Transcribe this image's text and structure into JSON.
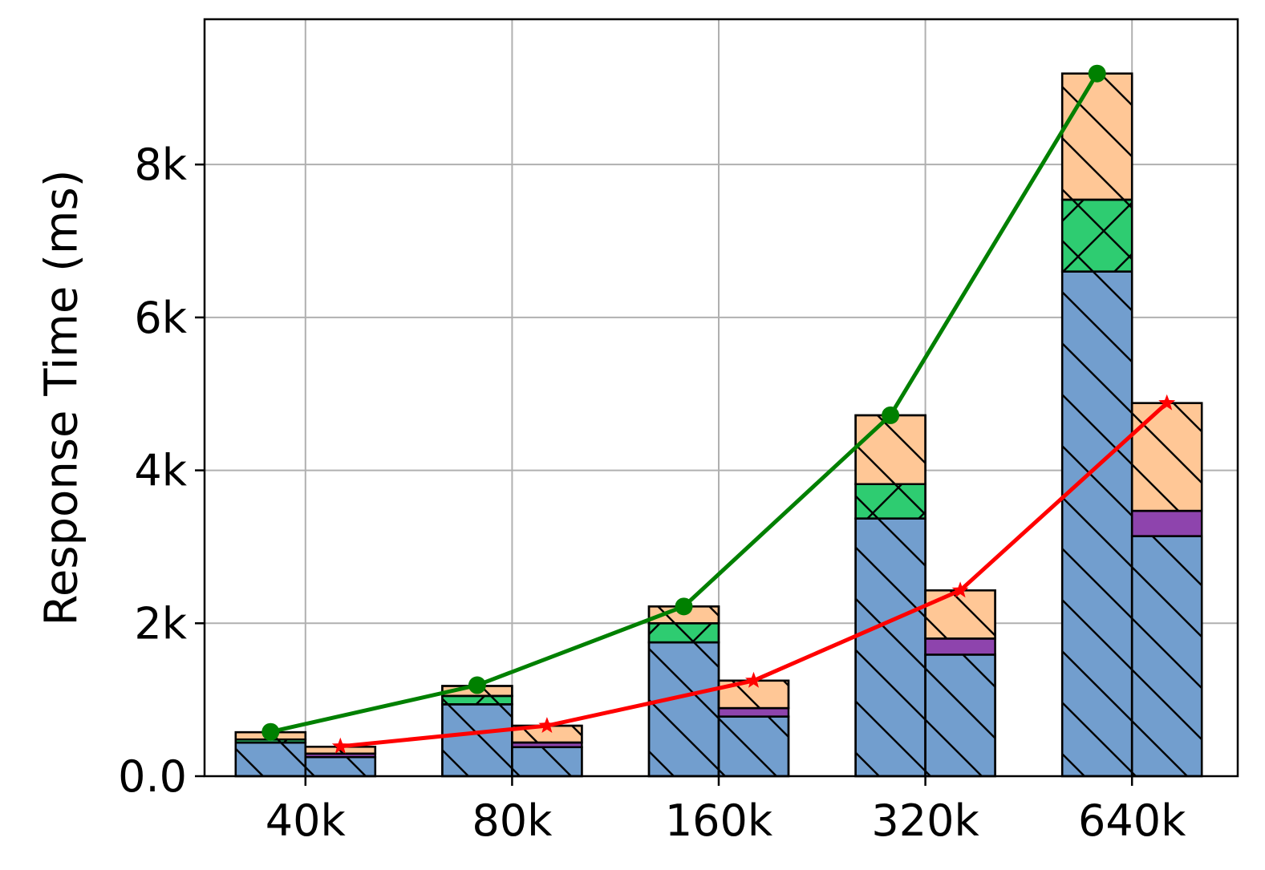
{
  "chart_data": {
    "type": "bar",
    "ylabel": "Response Time (ms)",
    "xlabel": "",
    "title": "",
    "categories": [
      "40k",
      "80k",
      "160k",
      "320k",
      "640k"
    ],
    "ylim": [
      0,
      9900
    ],
    "yticks": [
      0,
      2000,
      4000,
      6000,
      8000
    ],
    "ytick_labels": [
      "0.0",
      "2k",
      "4k",
      "6k",
      "8k"
    ],
    "grid": true,
    "legend": "none",
    "bar_groups": [
      {
        "segments": [
          {
            "color": "#729ece",
            "hatch": "back-diagonal",
            "values": [
              440,
              940,
              1750,
              3370,
              6600
            ]
          },
          {
            "color": "#2ecc71",
            "hatch": "cross",
            "values": [
              40,
              110,
              250,
              450,
              940
            ]
          },
          {
            "color": "#ffc796",
            "hatch": "back-diagonal",
            "values": [
              95,
              130,
              220,
              900,
              1650
            ]
          }
        ],
        "line": {
          "color": "#008000",
          "marker": "circle",
          "values": [
            580,
            1190,
            2220,
            4720,
            9190
          ]
        }
      },
      {
        "segments": [
          {
            "color": "#729ece",
            "hatch": "back-diagonal",
            "values": [
              250,
              380,
              780,
              1590,
              3140
            ]
          },
          {
            "color": "#8e44ad",
            "hatch": "none",
            "values": [
              45,
              60,
              110,
              210,
              330
            ]
          },
          {
            "color": "#ffc796",
            "hatch": "back-diagonal",
            "values": [
              90,
              220,
              360,
              630,
              1410
            ]
          }
        ],
        "line": {
          "color": "#ff0000",
          "marker": "star",
          "values": [
            390,
            660,
            1250,
            2430,
            4880
          ]
        }
      }
    ]
  }
}
